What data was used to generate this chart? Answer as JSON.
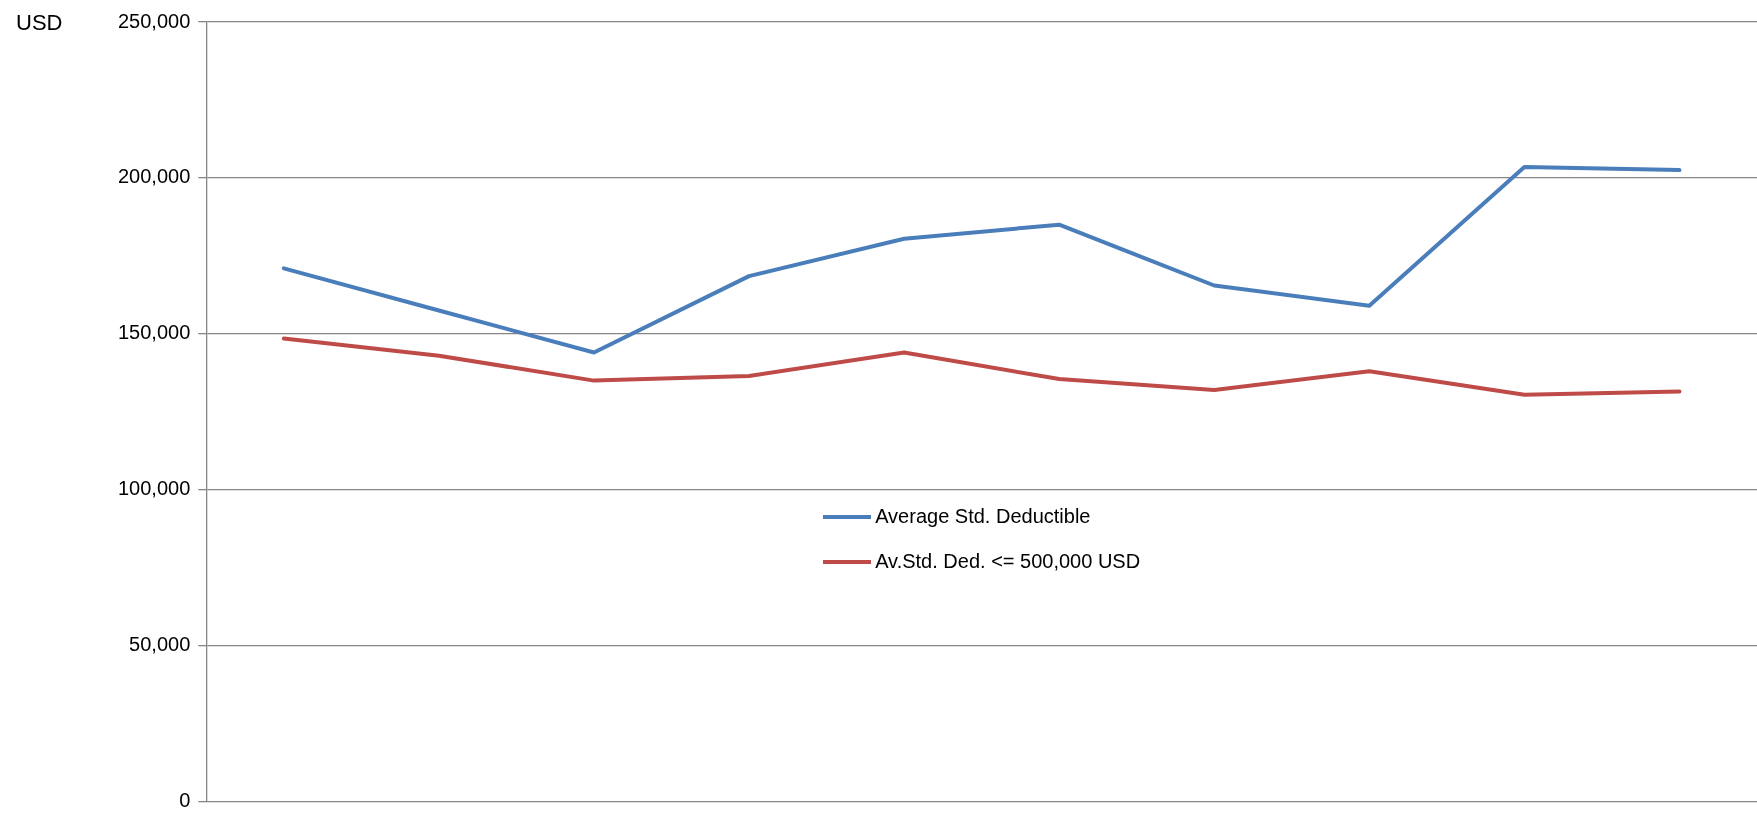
{
  "chart_data": {
    "type": "line",
    "ylabel": "USD",
    "categories": [
      null,
      null,
      null,
      null,
      null,
      null,
      null,
      null,
      null,
      null
    ],
    "series": [
      {
        "name": "Average Std. Deductible",
        "color": "#4a7ebb",
        "values": [
          171000,
          157500,
          144000,
          168500,
          180500,
          185000,
          165500,
          159000,
          203500,
          202500
        ]
      },
      {
        "name": "Av.Std. Ded. <= 500,000 USD",
        "color": "#be4b48",
        "values": [
          148500,
          143000,
          135000,
          136500,
          144000,
          135500,
          132000,
          138000,
          130500,
          131500
        ]
      }
    ],
    "ylim": [
      0,
      250000
    ],
    "yticks": [
      0,
      {
        "value": 50000,
        "label": "50,000"
      },
      {
        "value": 100000,
        "label": "100,000"
      },
      {
        "value": 150000,
        "label": "150,000"
      },
      {
        "value": 200000,
        "label": "200,000"
      },
      {
        "value": 250000,
        "label": "250,000"
      }
    ],
    "grid": "y",
    "legend": "center",
    "marker": "none",
    "line_style": "solid"
  }
}
